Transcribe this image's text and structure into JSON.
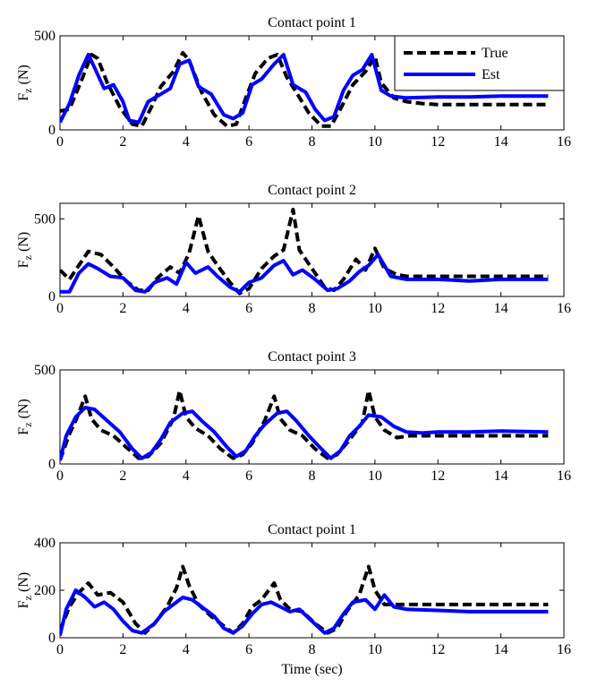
{
  "figure": {
    "xlabel": "Time (sec)",
    "ylabel_main": "F",
    "ylabel_sub": "z",
    "ylabel_unit": "(N)"
  },
  "legend": {
    "entries": [
      {
        "label": "True",
        "color": "#000000",
        "style": "dashed"
      },
      {
        "label": "Est",
        "color": "#0000ff",
        "style": "solid"
      }
    ],
    "placement": "top-right of first subplot"
  },
  "chart_data": [
    {
      "type": "line",
      "title": "Contact point 1",
      "xlim": [
        0,
        16
      ],
      "ylim": [
        0,
        500
      ],
      "xticks": [
        0,
        2,
        4,
        6,
        8,
        10,
        12,
        14,
        16
      ],
      "yticks": [
        0,
        500
      ],
      "grid": false,
      "series": [
        {
          "name": "True",
          "color": "#000000",
          "style": "dashed",
          "x": [
            0,
            0.3,
            0.7,
            1.0,
            1.2,
            1.5,
            1.9,
            2.3,
            2.6,
            2.9,
            3.2,
            3.6,
            3.9,
            4.1,
            4.5,
            4.9,
            5.3,
            5.6,
            5.9,
            6.2,
            6.6,
            6.9,
            7.2,
            7.5,
            7.9,
            8.3,
            8.6,
            8.9,
            9.3,
            9.7,
            10.0,
            10.2,
            10.6,
            11.0,
            11.5,
            12.0,
            13.0,
            14.0,
            15.5
          ],
          "y": [
            100,
            110,
            270,
            400,
            380,
            250,
            120,
            30,
            20,
            120,
            230,
            310,
            410,
            370,
            200,
            80,
            20,
            30,
            170,
            300,
            380,
            400,
            280,
            200,
            90,
            20,
            20,
            110,
            240,
            310,
            390,
            250,
            170,
            150,
            140,
            135,
            135,
            135,
            135
          ]
        },
        {
          "name": "Est",
          "color": "#0000ff",
          "style": "solid",
          "x": [
            0,
            0.3,
            0.6,
            0.9,
            1.1,
            1.4,
            1.7,
            2.0,
            2.2,
            2.5,
            2.8,
            3.1,
            3.5,
            3.8,
            4.1,
            4.4,
            4.8,
            5.2,
            5.5,
            5.8,
            6.1,
            6.4,
            6.8,
            7.1,
            7.4,
            7.8,
            8.1,
            8.4,
            8.7,
            9.0,
            9.3,
            9.6,
            9.9,
            10.2,
            10.5,
            11.0,
            12.0,
            13.0,
            14.0,
            15.5
          ],
          "y": [
            40,
            140,
            290,
            400,
            330,
            220,
            240,
            150,
            50,
            40,
            150,
            180,
            220,
            350,
            370,
            230,
            190,
            80,
            60,
            90,
            240,
            270,
            350,
            400,
            240,
            200,
            110,
            50,
            70,
            210,
            290,
            320,
            400,
            210,
            180,
            170,
            175,
            175,
            180,
            180
          ]
        }
      ]
    },
    {
      "type": "line",
      "title": "Contact point 2",
      "xlim": [
        0,
        16
      ],
      "ylim": [
        0,
        600
      ],
      "xticks": [
        0,
        2,
        4,
        6,
        8,
        10,
        12,
        14,
        16
      ],
      "yticks": [
        0,
        500
      ],
      "grid": false,
      "series": [
        {
          "name": "True",
          "color": "#000000",
          "style": "dashed",
          "x": [
            0,
            0.3,
            0.6,
            0.9,
            1.3,
            1.7,
            2.1,
            2.5,
            2.8,
            3.1,
            3.5,
            3.8,
            4.1,
            4.4,
            4.7,
            5.0,
            5.4,
            5.7,
            6.0,
            6.4,
            6.8,
            7.1,
            7.4,
            7.6,
            8.0,
            8.4,
            8.7,
            9.0,
            9.4,
            9.7,
            10.0,
            10.3,
            10.7,
            11.0,
            12.0,
            13.0,
            14.0,
            15.5
          ],
          "y": [
            170,
            110,
            200,
            290,
            270,
            190,
            100,
            40,
            40,
            120,
            190,
            150,
            280,
            520,
            290,
            200,
            90,
            20,
            50,
            180,
            260,
            300,
            560,
            300,
            180,
            60,
            40,
            110,
            240,
            170,
            310,
            180,
            140,
            130,
            130,
            130,
            130,
            130
          ]
        },
        {
          "name": "Est",
          "color": "#0000ff",
          "style": "solid",
          "x": [
            0,
            0.3,
            0.6,
            0.9,
            1.2,
            1.6,
            2.0,
            2.4,
            2.7,
            3.0,
            3.4,
            3.7,
            4.0,
            4.3,
            4.7,
            5.0,
            5.4,
            5.7,
            6.0,
            6.4,
            6.8,
            7.1,
            7.4,
            7.7,
            8.1,
            8.5,
            8.8,
            9.2,
            9.5,
            9.8,
            10.1,
            10.5,
            11.0,
            12.0,
            13.0,
            14.0,
            15.5
          ],
          "y": [
            30,
            30,
            150,
            210,
            180,
            130,
            120,
            40,
            30,
            90,
            120,
            80,
            220,
            150,
            190,
            130,
            60,
            30,
            90,
            120,
            200,
            230,
            140,
            170,
            110,
            40,
            50,
            100,
            160,
            200,
            270,
            130,
            110,
            110,
            100,
            110,
            110
          ]
        }
      ]
    },
    {
      "type": "line",
      "title": "Contact point 3",
      "xlim": [
        0,
        16
      ],
      "ylim": [
        0,
        500
      ],
      "xticks": [
        0,
        2,
        4,
        6,
        8,
        10,
        12,
        14,
        16
      ],
      "yticks": [
        0,
        500
      ],
      "grid": false,
      "series": [
        {
          "name": "True",
          "color": "#000000",
          "style": "dashed",
          "x": [
            0,
            0.3,
            0.5,
            0.8,
            1.0,
            1.3,
            1.7,
            2.1,
            2.5,
            2.8,
            3.2,
            3.6,
            3.8,
            4.0,
            4.3,
            4.7,
            5.1,
            5.5,
            5.8,
            6.1,
            6.5,
            6.8,
            7.0,
            7.3,
            7.7,
            8.1,
            8.5,
            8.8,
            9.2,
            9.6,
            9.8,
            10.0,
            10.3,
            10.7,
            11.1,
            11.5,
            12.0,
            13.0,
            14.0,
            15.5
          ],
          "y": [
            20,
            160,
            230,
            360,
            240,
            180,
            150,
            90,
            30,
            40,
            110,
            240,
            390,
            250,
            190,
            150,
            80,
            30,
            50,
            110,
            230,
            360,
            240,
            180,
            150,
            80,
            30,
            50,
            130,
            220,
            390,
            250,
            180,
            140,
            150,
            150,
            150,
            150,
            150,
            150
          ]
        },
        {
          "name": "Est",
          "color": "#0000ff",
          "style": "solid",
          "x": [
            0,
            0.2,
            0.5,
            0.8,
            1.1,
            1.5,
            1.9,
            2.3,
            2.6,
            2.9,
            3.2,
            3.5,
            3.9,
            4.2,
            4.5,
            4.9,
            5.3,
            5.6,
            5.9,
            6.2,
            6.5,
            6.9,
            7.2,
            7.5,
            7.9,
            8.3,
            8.6,
            8.9,
            9.2,
            9.5,
            9.8,
            10.2,
            10.6,
            11.0,
            11.5,
            12.0,
            13.0,
            14.0,
            15.5
          ],
          "y": [
            20,
            150,
            250,
            300,
            290,
            230,
            170,
            80,
            30,
            60,
            130,
            220,
            270,
            280,
            230,
            170,
            90,
            40,
            70,
            150,
            210,
            270,
            280,
            230,
            150,
            80,
            30,
            70,
            150,
            200,
            260,
            250,
            200,
            170,
            165,
            170,
            170,
            175,
            170
          ]
        }
      ]
    },
    {
      "type": "line",
      "title": "Contact point 1",
      "xlim": [
        0,
        16
      ],
      "ylim": [
        0,
        400
      ],
      "xticks": [
        0,
        2,
        4,
        6,
        8,
        10,
        12,
        14,
        16
      ],
      "yticks": [
        0,
        200,
        400
      ],
      "grid": false,
      "series": [
        {
          "name": "True",
          "color": "#000000",
          "style": "dashed",
          "x": [
            0,
            0.3,
            0.6,
            0.9,
            1.2,
            1.6,
            2.0,
            2.4,
            2.7,
            3.0,
            3.4,
            3.7,
            3.9,
            4.1,
            4.4,
            4.8,
            5.2,
            5.5,
            5.8,
            6.1,
            6.4,
            6.8,
            7.0,
            7.3,
            7.7,
            8.1,
            8.5,
            8.8,
            9.1,
            9.5,
            9.8,
            10.0,
            10.3,
            10.6,
            11.0,
            12.0,
            13.0,
            14.0,
            15.5
          ],
          "y": [
            30,
            130,
            190,
            230,
            180,
            190,
            150,
            60,
            20,
            60,
            130,
            210,
            300,
            220,
            140,
            90,
            50,
            20,
            60,
            130,
            160,
            230,
            160,
            120,
            110,
            60,
            20,
            40,
            110,
            180,
            300,
            200,
            140,
            140,
            140,
            140,
            140,
            140,
            140
          ]
        },
        {
          "name": "Est",
          "color": "#0000ff",
          "style": "solid",
          "x": [
            0,
            0.2,
            0.5,
            0.8,
            1.1,
            1.4,
            1.7,
            2.0,
            2.3,
            2.6,
            3.0,
            3.3,
            3.6,
            3.9,
            4.2,
            4.5,
            4.9,
            5.2,
            5.5,
            5.8,
            6.1,
            6.4,
            6.7,
            7.0,
            7.3,
            7.6,
            8.0,
            8.4,
            8.7,
            9.0,
            9.3,
            9.7,
            10.0,
            10.3,
            10.6,
            11.0,
            12.0,
            13.0,
            14.0,
            15.5
          ],
          "y": [
            10,
            120,
            200,
            170,
            130,
            150,
            120,
            70,
            30,
            20,
            60,
            110,
            140,
            170,
            160,
            130,
            90,
            40,
            20,
            50,
            100,
            140,
            150,
            130,
            110,
            120,
            70,
            20,
            40,
            100,
            150,
            160,
            120,
            180,
            130,
            120,
            115,
            110,
            110,
            110
          ]
        }
      ]
    }
  ]
}
